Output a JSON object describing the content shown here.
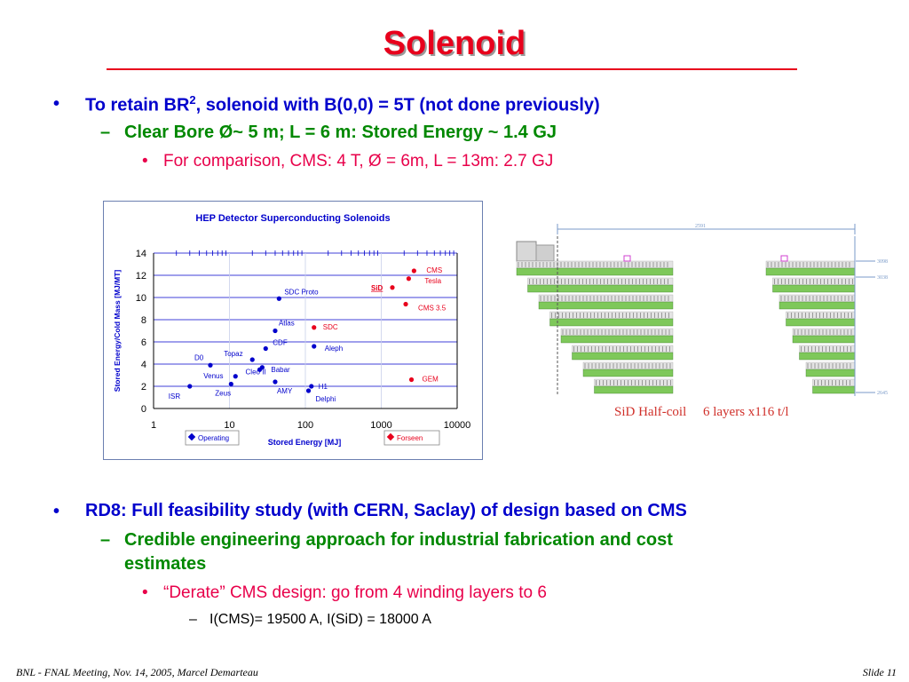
{
  "slide": {
    "title": "Solenoid",
    "bullets": {
      "b1_pre": "To retain BR",
      "b1_sup": "2",
      "b1_post": ", solenoid with B(0,0) = 5T (not done previously)",
      "b1_sub": "Clear Bore Ø~ 5 m; L = 6 m: Stored Energy ~ 1.4 GJ",
      "b1_subsub": "For comparison, CMS: 4 T, Ø = 6m, L = 13m: 2.7 GJ",
      "b2": "RD8: Full feasibility study (with CERN, Saclay) of design based on CMS",
      "b2_sub_line1": "Credible engineering approach for industrial fabrication and cost",
      "b2_sub_line2": "estimates",
      "b2_subsub": "“Derate” CMS design: go from 4 winding layers to 6",
      "b2_subsubsub": "I(CMS)= 19500 A, I(SiD) = 18000 A"
    },
    "markers": {
      "bullet": "•",
      "dash": "–"
    },
    "footer_left": "BNL - FNAL Meeting, Nov. 14, 2005, Marcel Demarteau",
    "footer_right": "Slide 11",
    "colors": {
      "title": "#e8001c",
      "level1": "#0000cc",
      "level2": "#008800",
      "level3": "#e8004a"
    }
  },
  "chart_data": {
    "type": "scatter",
    "title": "HEP Detector Superconducting Solenoids",
    "xlabel": "Stored Energy [MJ]",
    "ylabel": "Stored Energy/Cold Mass [MJ/MT]",
    "xscale": "log",
    "xlim": [
      1,
      10000
    ],
    "ylim": [
      0,
      14
    ],
    "x_ticks": [
      "1",
      "10",
      "100",
      "1000",
      "10000"
    ],
    "y_ticks": [
      "0",
      "2",
      "4",
      "6",
      "8",
      "10",
      "12",
      "14"
    ],
    "grid": "horizontal",
    "series": [
      {
        "name": "Operating",
        "color": "#0000cc",
        "points": [
          {
            "label": "SDC Proto",
            "x": 45,
            "y": 9.9
          },
          {
            "label": "Atlas",
            "x": 40,
            "y": 7.0
          },
          {
            "label": "CDF",
            "x": 30,
            "y": 5.4
          },
          {
            "label": "Aleph",
            "x": 130,
            "y": 5.6
          },
          {
            "label": "Topaz",
            "x": 20,
            "y": 4.4
          },
          {
            "label": "D0",
            "x": 5.6,
            "y": 3.9
          },
          {
            "label": "Babar",
            "x": 27,
            "y": 3.7
          },
          {
            "label": "Venus",
            "x": 12,
            "y": 2.9
          },
          {
            "label": "Cleo II",
            "x": 25,
            "y": 3.5
          },
          {
            "label": "AMY",
            "x": 40,
            "y": 2.4
          },
          {
            "label": "ISR",
            "x": 3,
            "y": 2.0
          },
          {
            "label": "Zeus",
            "x": 10.5,
            "y": 2.2
          },
          {
            "label": "H1",
            "x": 120,
            "y": 2.0
          },
          {
            "label": "Delphi",
            "x": 110,
            "y": 1.6
          }
        ]
      },
      {
        "name": "Forseen",
        "color": "#e8001c",
        "points": [
          {
            "label": "CMS",
            "x": 2700,
            "y": 12.4
          },
          {
            "label": "Tesla",
            "x": 2300,
            "y": 11.7
          },
          {
            "label": "SiD",
            "x": 1400,
            "y": 10.9
          },
          {
            "label": "CMS 3.5",
            "x": 2100,
            "y": 9.4
          },
          {
            "label": "SDC",
            "x": 130,
            "y": 7.3
          },
          {
            "label": "GEM",
            "x": 2500,
            "y": 2.6
          }
        ]
      }
    ]
  },
  "figure": {
    "top_dim": "2591",
    "right_dims": [
      "3098",
      "3038",
      "2645"
    ],
    "caption": "SiD Half-coil     6 layers x116 t/l"
  }
}
